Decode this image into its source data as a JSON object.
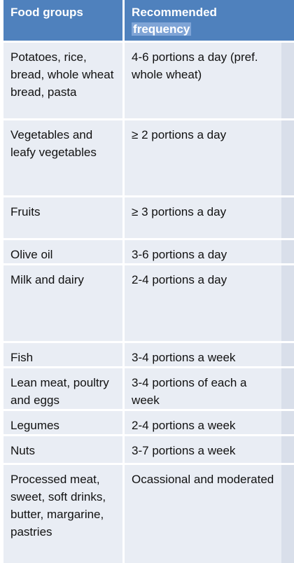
{
  "header": {
    "col1": "Food groups",
    "col2_line1": "Recommended",
    "col2_line2": "frequency"
  },
  "rows": [
    {
      "group": "Potatoes, rice, bread, whole wheat bread, pasta",
      "frequency": "4-6 portions a day (pref. whole wheat)"
    },
    {
      "group": "Vegetables and leafy vegetables",
      "frequency": "≥ 2 portions a day"
    },
    {
      "group": "Fruits",
      "frequency": "≥ 3 portions a day"
    },
    {
      "group": "Olive oil",
      "frequency": "3-6 portions a day"
    },
    {
      "group": "Milk and dairy",
      "frequency": "2-4 portions a day"
    },
    {
      "group": "Fish",
      "frequency": "3-4 portions a week"
    },
    {
      "group": "Lean meat, poultry and eggs",
      "frequency": "3-4 portions of each a week"
    },
    {
      "group": "Legumes",
      "frequency": "2-4 portions a week"
    },
    {
      "group": "Nuts",
      "frequency": "3-7 portions a week"
    },
    {
      "group": "Processed meat, sweet, soft drinks, butter, margarine, pastries",
      "frequency": "Ocassional and moderated"
    }
  ],
  "colors": {
    "header": "#4f81bd",
    "row": "#e9edf4",
    "highlight": "#7fa4d6"
  }
}
